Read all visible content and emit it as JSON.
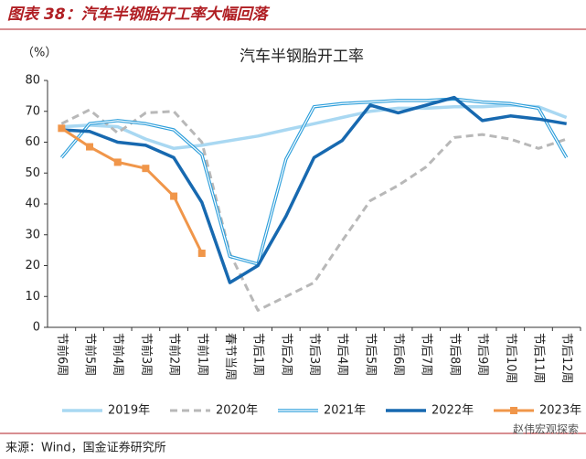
{
  "page_title": "图表 38：汽车半钢胎开工率大幅回落",
  "source": "来源：Wind，国金证券研究所",
  "watermark": "赵伟宏观探索",
  "chart_data": {
    "type": "line",
    "title": "汽车半钢胎开工率",
    "y_label": "（%）",
    "categories": [
      "节前6周",
      "节前5周",
      "节前4周",
      "节前3周",
      "节前2周",
      "节前1周",
      "春节当周",
      "节后1周",
      "节后2周",
      "节后3周",
      "节后4周",
      "节后5周",
      "节后6周",
      "节后7周",
      "节后8周",
      "节后9周",
      "节后10周",
      "节后11周",
      "节后12周"
    ],
    "series": [
      {
        "name": "2019年",
        "color": "#a9d8f2",
        "style": "solid",
        "values": [
          65,
          65.5,
          65,
          61,
          58,
          59,
          60.5,
          62,
          64,
          66,
          68,
          70,
          71,
          71,
          71.5,
          71.5,
          72,
          71.5,
          68
        ]
      },
      {
        "name": "2020年",
        "color": "#b8b8b8",
        "style": "dashed",
        "values": [
          66,
          70.5,
          63,
          69.5,
          70,
          60,
          24,
          5.5,
          10,
          14.5,
          28,
          41,
          46,
          52,
          61.5,
          62.5,
          61,
          58,
          61
        ]
      },
      {
        "name": "2021年",
        "color": "#2e9fdb",
        "style": "double",
        "values": [
          55,
          66,
          67,
          66,
          64,
          56,
          23,
          20.5,
          54.5,
          71.5,
          72.5,
          73,
          73.5,
          73.5,
          74,
          73,
          72.5,
          71,
          55
        ]
      },
      {
        "name": "2022年",
        "color": "#1769b0",
        "style": "thick",
        "values": [
          64,
          63.5,
          60,
          59,
          55,
          40.5,
          14.5,
          20,
          36,
          55,
          60.5,
          72,
          69.5,
          72,
          74.5,
          67,
          68.5,
          67.5,
          66
        ]
      },
      {
        "name": "2023年",
        "color": "#f0964a",
        "style": "marker",
        "values": [
          64.5,
          58.5,
          53.5,
          51.5,
          42.5,
          24,
          null,
          null,
          null,
          null,
          null,
          null,
          null,
          null,
          null,
          null,
          null,
          null,
          null
        ]
      }
    ],
    "ylim": [
      0,
      80
    ],
    "yticks": [
      0,
      10,
      20,
      30,
      40,
      50,
      60,
      70,
      80
    ],
    "legend": "bottom"
  }
}
